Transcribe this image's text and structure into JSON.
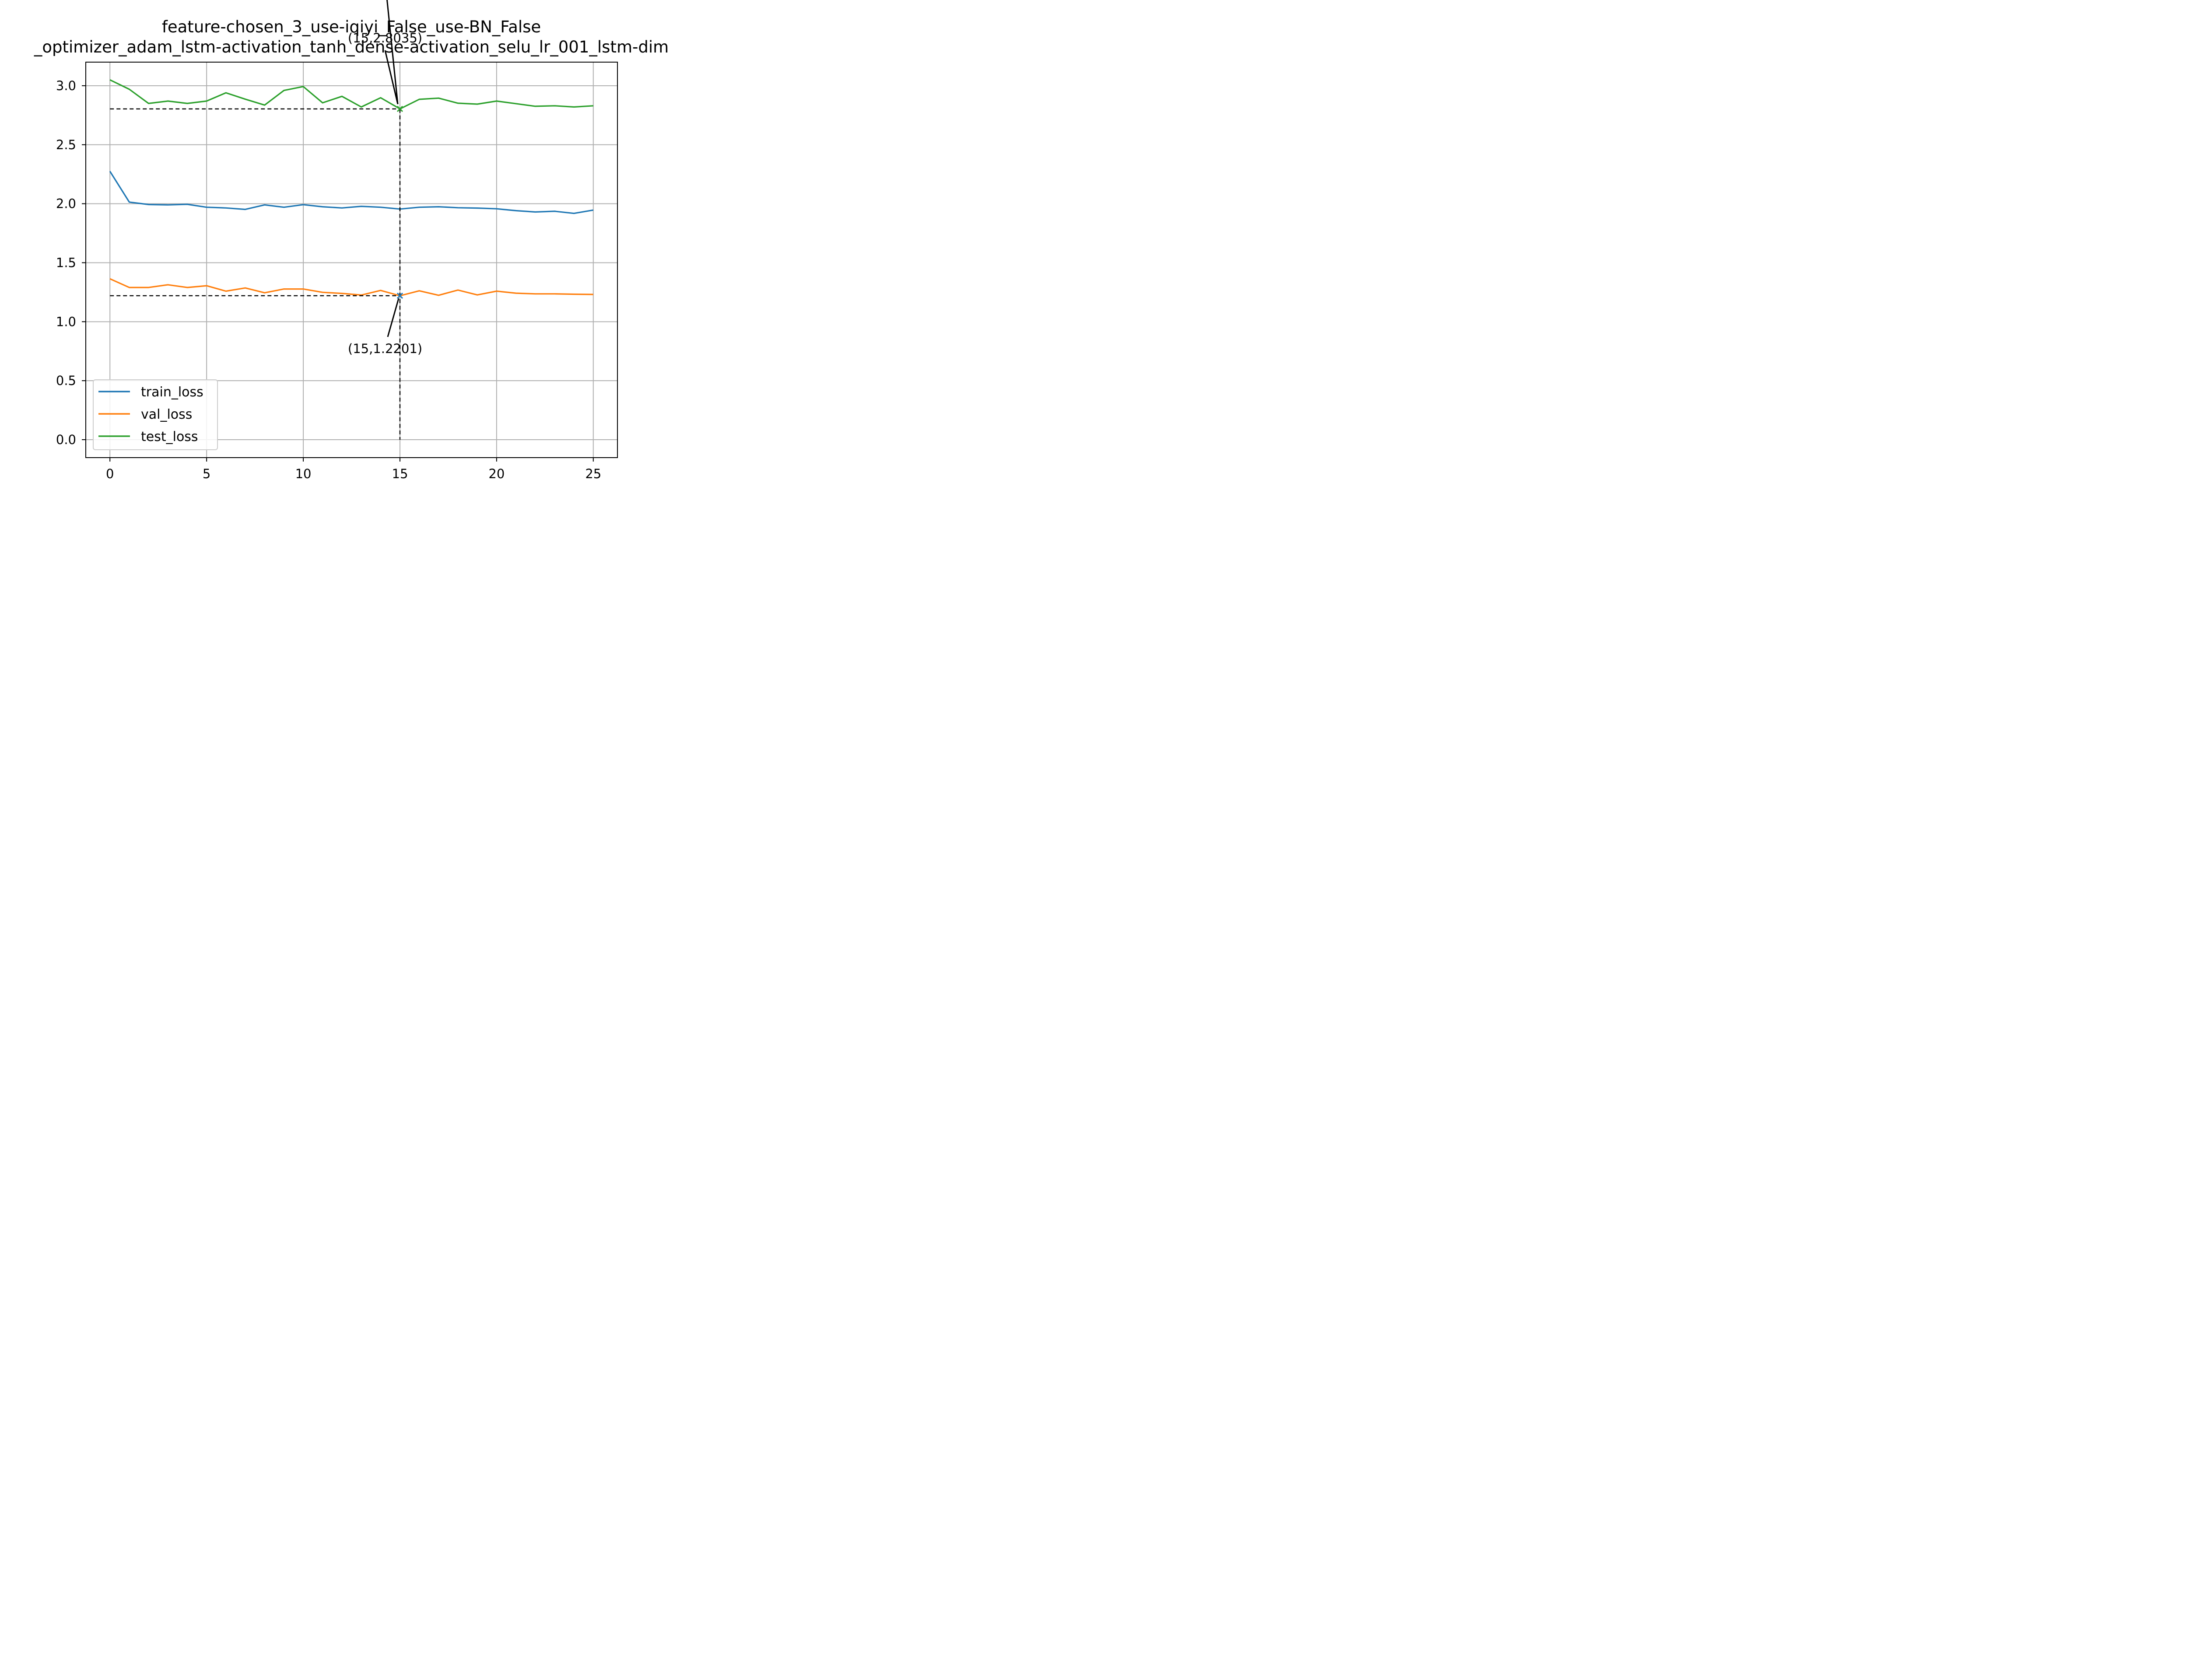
{
  "chart_data": {
    "type": "line",
    "title_lines": [
      "feature-chosen_3_use-iqiyi_False_use-BN_False",
      "_optimizer_adam_lstm-activation_tanh_dense-activation_selu_lr_001_lstm-dim"
    ],
    "xlabel": "",
    "ylabel": "",
    "xlim": [
      -1.25,
      26.25
    ],
    "ylim": [
      -0.152,
      3.2
    ],
    "x_ticks": [
      0,
      5,
      10,
      15,
      20,
      25
    ],
    "y_ticks": [
      0.0,
      0.5,
      1.0,
      1.5,
      2.0,
      2.5,
      3.0
    ],
    "x_tick_labels": [
      "0",
      "5",
      "10",
      "15",
      "20",
      "25"
    ],
    "y_tick_labels": [
      "0.0",
      "0.5",
      "1.0",
      "1.5",
      "2.0",
      "2.5",
      "3.0"
    ],
    "grid": true,
    "legend_position": "lower-left",
    "x": [
      0,
      1,
      2,
      3,
      4,
      5,
      6,
      7,
      8,
      9,
      10,
      11,
      12,
      13,
      14,
      15,
      16,
      17,
      18,
      19,
      20,
      21,
      22,
      23,
      24,
      25
    ],
    "series": [
      {
        "name": "train_loss",
        "color": "#1f77b4",
        "values": [
          2.275,
          2.014,
          1.993,
          1.99,
          1.995,
          1.97,
          1.964,
          1.952,
          1.99,
          1.97,
          1.992,
          1.974,
          1.964,
          1.978,
          1.97,
          1.955,
          1.97,
          1.974,
          1.966,
          1.963,
          1.957,
          1.941,
          1.93,
          1.936,
          1.918,
          1.946
        ]
      },
      {
        "name": "val_loss",
        "color": "#ff7f0e",
        "values": [
          1.364,
          1.29,
          1.29,
          1.313,
          1.29,
          1.305,
          1.259,
          1.286,
          1.245,
          1.277,
          1.277,
          1.249,
          1.24,
          1.226,
          1.265,
          1.2201,
          1.262,
          1.224,
          1.268,
          1.227,
          1.259,
          1.242,
          1.236,
          1.236,
          1.233,
          1.231
        ]
      },
      {
        "name": "test_loss",
        "color": "#2ca02c",
        "values": [
          3.05,
          2.97,
          2.85,
          2.87,
          2.85,
          2.87,
          2.94,
          2.886,
          2.836,
          2.96,
          2.993,
          2.855,
          2.91,
          2.82,
          2.898,
          2.8035,
          2.885,
          2.895,
          2.852,
          2.844,
          2.87,
          2.848,
          2.826,
          2.83,
          2.82,
          2.83
        ]
      }
    ],
    "annotations": [
      {
        "series": "test_loss",
        "x": 15,
        "y": 2.8035,
        "text": "(15,2.8035)",
        "marker_color": "#2ca02c"
      },
      {
        "series": "val_loss",
        "x": 15,
        "y": 1.2201,
        "text": "(15,1.2201)",
        "marker_color": "#1f77b4"
      }
    ]
  }
}
